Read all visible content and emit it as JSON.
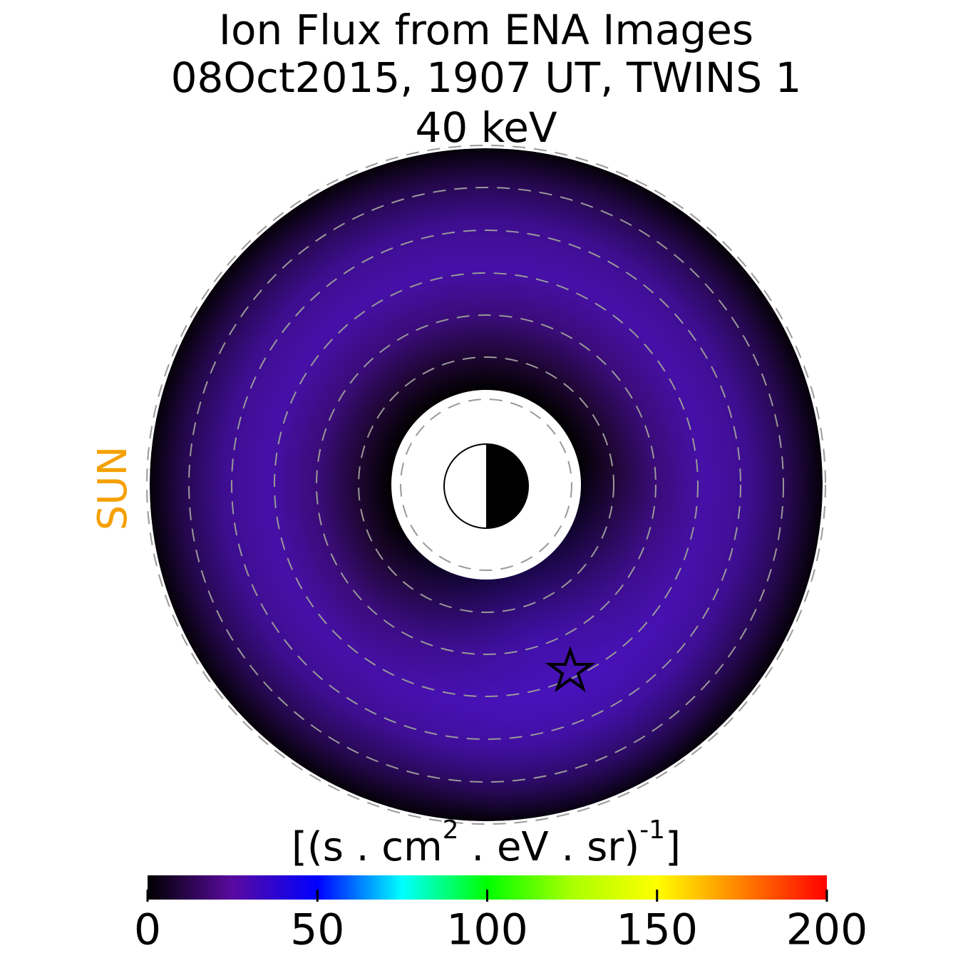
{
  "chart_data": {
    "type": "polar-heatmap",
    "title": [
      "Ion Flux from  ENA Images",
      "08Oct2015, 1907 UT,  TWINS 1",
      "40 keV"
    ],
    "side_label": "SUN",
    "side_label_color": "#f5a000",
    "colorbar_label": [
      "[(s . cm",
      "2",
      "  . eV . sr)",
      "-1",
      "]"
    ],
    "clim": [
      0,
      200
    ],
    "colorbar_ticks": [
      0,
      50,
      100,
      150,
      200
    ],
    "colormap": [
      "#000000",
      "#5a0aa0",
      "#0000ff",
      "#00ffff",
      "#00ff00",
      "#aaff00",
      "#ffff00",
      "#ff8000",
      "#ff0000"
    ]
  }
}
